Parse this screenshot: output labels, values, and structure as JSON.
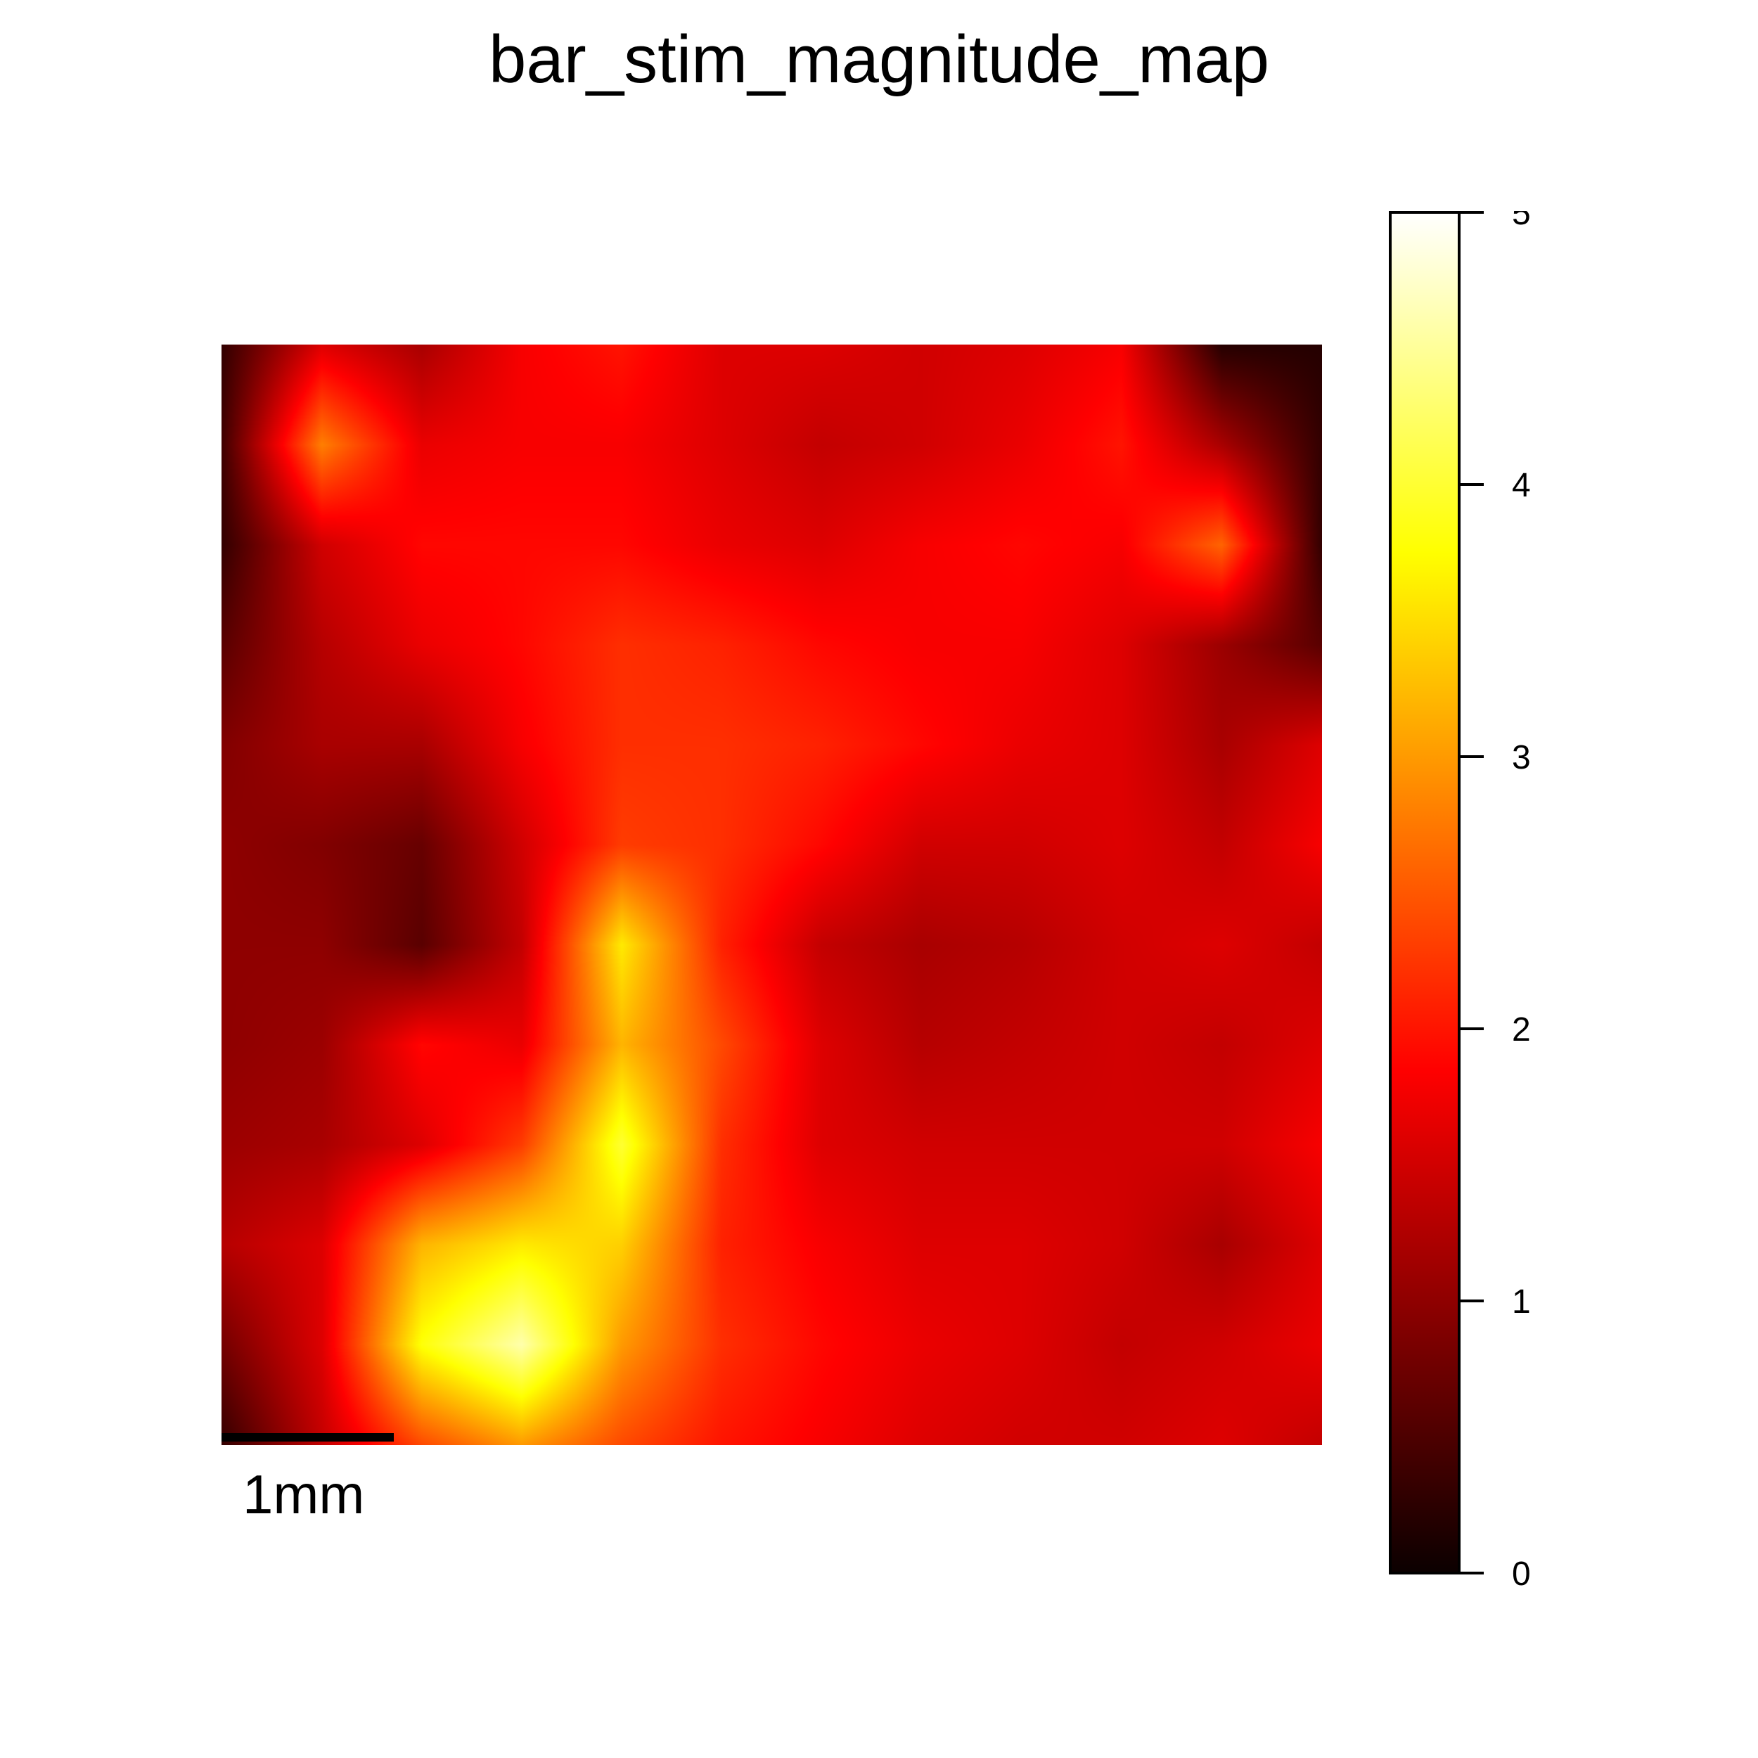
{
  "chart_data": {
    "type": "heatmap",
    "title": "bar_stim_magnitude_map",
    "colormap": "hot",
    "colorbar": {
      "range": [
        0,
        5
      ],
      "ticks": [
        0,
        1,
        2,
        3,
        4,
        5
      ],
      "tick_labels": [
        "0",
        "1",
        "2",
        "3",
        "4",
        "5"
      ]
    },
    "scale_bar_label": "1mm",
    "grid_description": "magnitude values 0–5 estimated on a coarse grid (rows top→bottom, cols left→right)",
    "grid": [
      [
        0.3,
        1.6,
        1.2,
        1.8,
        2.0,
        1.6,
        1.6,
        1.5,
        1.6,
        1.8,
        0.2,
        0.2
      ],
      [
        0.4,
        2.8,
        1.7,
        1.8,
        1.8,
        1.6,
        1.4,
        1.5,
        1.7,
        2.0,
        1.2,
        0.3
      ],
      [
        0.3,
        1.5,
        1.9,
        1.9,
        1.9,
        1.7,
        1.6,
        1.8,
        1.9,
        1.8,
        2.6,
        0.3
      ],
      [
        0.6,
        1.3,
        1.7,
        1.9,
        2.2,
        2.1,
        1.9,
        1.8,
        1.8,
        1.6,
        1.1,
        0.6
      ],
      [
        0.9,
        1.2,
        1.2,
        1.8,
        2.2,
        2.2,
        2.1,
        1.9,
        1.7,
        1.6,
        1.2,
        1.6
      ],
      [
        1.0,
        0.9,
        0.7,
        1.5,
        2.3,
        2.2,
        1.9,
        1.5,
        1.5,
        1.6,
        1.4,
        1.8
      ],
      [
        1.0,
        1.0,
        0.6,
        1.4,
        3.6,
        2.1,
        1.4,
        1.2,
        1.3,
        1.5,
        1.6,
        1.4
      ],
      [
        1.0,
        1.1,
        1.9,
        1.7,
        3.2,
        2.4,
        1.6,
        1.3,
        1.4,
        1.5,
        1.4,
        1.6
      ],
      [
        1.1,
        1.2,
        1.6,
        2.3,
        4.0,
        2.2,
        1.6,
        1.5,
        1.5,
        1.5,
        1.5,
        1.8
      ],
      [
        1.3,
        1.6,
        3.2,
        3.6,
        3.4,
        2.1,
        1.8,
        1.6,
        1.6,
        1.5,
        1.2,
        1.6
      ],
      [
        0.8,
        1.6,
        3.8,
        4.6,
        3.0,
        2.2,
        1.9,
        1.7,
        1.6,
        1.4,
        1.5,
        1.7
      ],
      [
        0.3,
        1.4,
        2.4,
        3.0,
        2.4,
        2.0,
        1.8,
        1.6,
        1.5,
        1.5,
        1.6,
        1.4
      ]
    ]
  }
}
